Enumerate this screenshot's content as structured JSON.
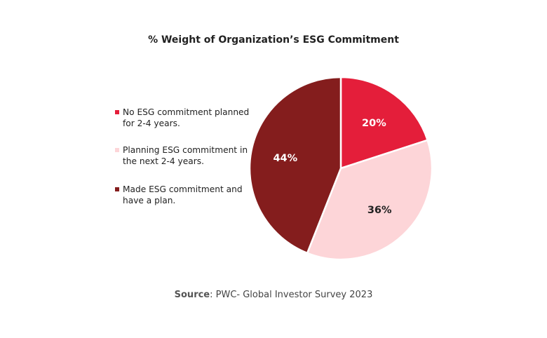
{
  "chart_data": {
    "type": "pie",
    "title": "% Weight of Organization’s ESG Commitment",
    "slices": [
      {
        "label": "No ESG commitment planned for 2-4 years.",
        "value": 20,
        "data_label": "20%",
        "color": "#e41e3a",
        "label_color": "#ffffff"
      },
      {
        "label": "Planning ESG commitment in the next 2-4 years.",
        "value": 36,
        "data_label": "36%",
        "color": "#fdd5d8",
        "label_color": "#222222"
      },
      {
        "label": "Made ESG commitment and have a plan.",
        "value": 44,
        "data_label": "44%",
        "color": "#841d1d",
        "label_color": "#ffffff"
      }
    ],
    "start_angle": "top",
    "direction": "clockwise",
    "legend_position": "left"
  },
  "source": {
    "label": "Source",
    "text": ": PWC- Global Investor Survey 2023"
  }
}
